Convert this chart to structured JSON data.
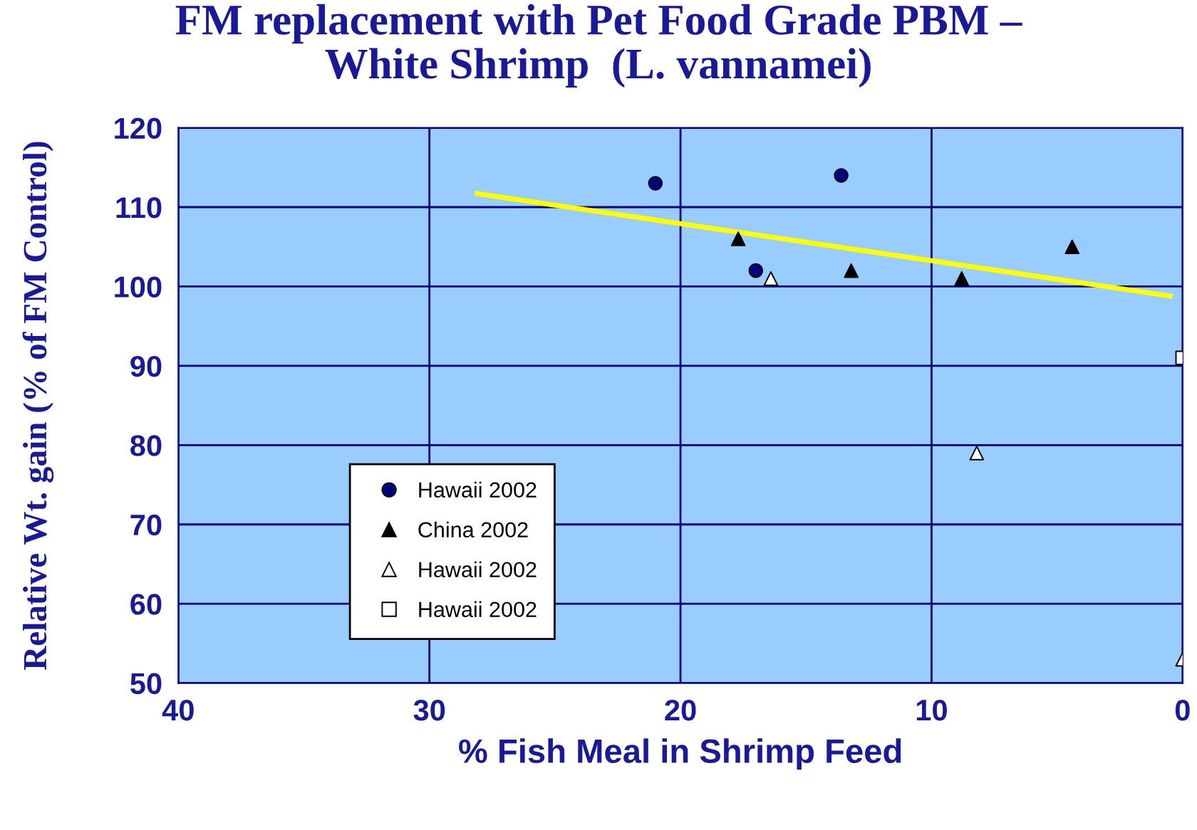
{
  "chart_data": {
    "type": "scatter",
    "title": "FM replacement with Pet Food Grade PBM –\nWhite Shrimp  (L. vannamei)",
    "xlabel": "% Fish Meal in Shrimp Feed",
    "ylabel": "Relative Wt. gain (% of FM Control)",
    "series": [
      {
        "name": "Hawaii 2002",
        "color": "#000080",
        "marker": "circle",
        "x": [
          21,
          13.6,
          17
        ],
        "values": [
          113,
          114,
          102
        ]
      },
      {
        "name": "China 2002",
        "color": "#000000",
        "marker": "triangle",
        "x": [
          17.7,
          13.2,
          8.8,
          4.4
        ],
        "values": [
          106,
          102,
          101,
          105
        ]
      },
      {
        "name": "Hawaii 2002",
        "color": "#ffffff",
        "marker": "triangle",
        "x": [
          16.4,
          8.2,
          0
        ],
        "values": [
          101,
          79,
          53
        ]
      },
      {
        "name": "Hawaii 2002",
        "color": "#ffffff",
        "marker": "square",
        "x": [
          0
        ],
        "values": [
          91
        ]
      },
      {
        "type": "line",
        "color": "#ffff00",
        "marker": "none",
        "x": [
          28.1,
          0.5
        ],
        "values": [
          111.7,
          98.8
        ]
      }
    ],
    "xlim": [
      40,
      0
    ],
    "xticks": [
      40,
      30,
      20,
      10,
      0
    ],
    "ylim": [
      50,
      120
    ],
    "yticks": [
      50,
      60,
      70,
      80,
      90,
      100,
      110,
      120
    ],
    "grid": true,
    "legend": "bottom left"
  }
}
